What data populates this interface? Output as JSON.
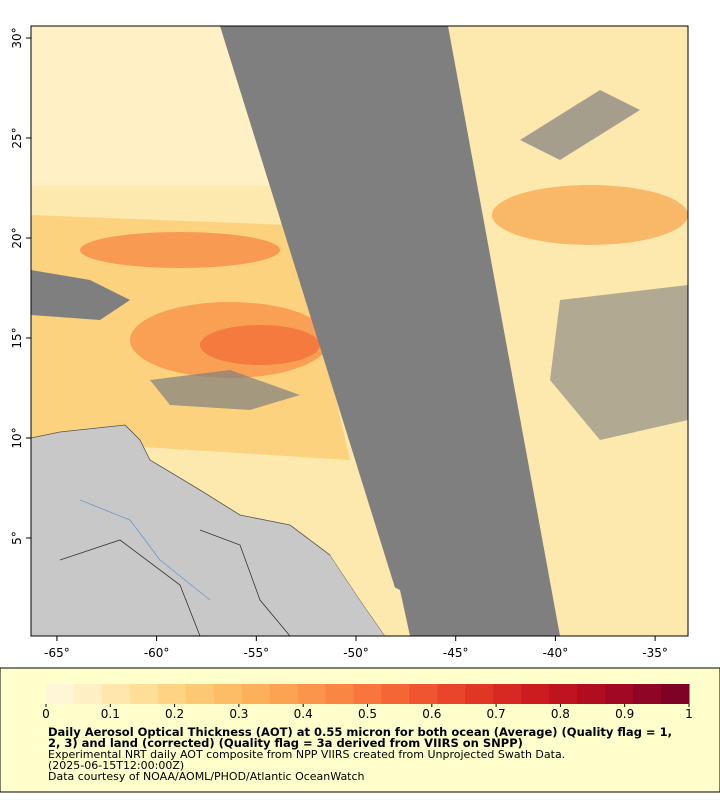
{
  "map": {
    "xlim": [
      -66.3,
      -33.35
    ],
    "ylim": [
      0.1,
      30.6
    ],
    "xticks": [
      {
        "value": -65,
        "label": "-65°"
      },
      {
        "value": -60,
        "label": "-60°"
      },
      {
        "value": -55,
        "label": "-55°"
      },
      {
        "value": -50,
        "label": "-50°"
      },
      {
        "value": -45,
        "label": "-45°"
      },
      {
        "value": -40,
        "label": "-40°"
      },
      {
        "value": -35,
        "label": "-35°"
      }
    ],
    "yticks": [
      {
        "value": 5,
        "label": "5°"
      },
      {
        "value": 10,
        "label": "10°"
      },
      {
        "value": 15,
        "label": "15°"
      },
      {
        "value": 20,
        "label": "20°"
      },
      {
        "value": 25,
        "label": "25°"
      },
      {
        "value": 30,
        "label": "30°"
      }
    ]
  },
  "colorbar": {
    "range": [
      0,
      1
    ],
    "ticks": [
      0,
      0.1,
      0.2,
      0.3,
      0.4,
      0.5,
      0.6,
      0.7,
      0.8,
      0.9,
      1
    ],
    "colors": [
      "#fff6d8",
      "#ffefc4",
      "#ffe6ac",
      "#ffde98",
      "#fed384",
      "#fdc873",
      "#fdbc66",
      "#fcb05c",
      "#fca353",
      "#fb954b",
      "#fa8644",
      "#f8763d",
      "#f46636",
      "#ef5530",
      "#e8452b",
      "#e03626",
      "#d72822",
      "#cc1c1f",
      "#bf131f",
      "#b00d21",
      "#a00823",
      "#8e0525",
      "#7d0226"
    ]
  },
  "legend": {
    "title_lines": [
      "Daily Aerosol Optical Thickness (AOT) at 0.55 micron for both ocean (Average) (Quality flag = 1,",
      "2, 3) and land (corrected) (Quality flag = 3a derived from VIIRS on SNPP)"
    ],
    "lines": [
      "Experimental NRT daily AOT composite from NPP VIIRS created from Unprojected Swath Data.",
      "(2025-06-15T12:00:00Z)",
      "Data courtesy of NOAA/AOML/PHOD/Atlantic OceanWatch"
    ]
  }
}
